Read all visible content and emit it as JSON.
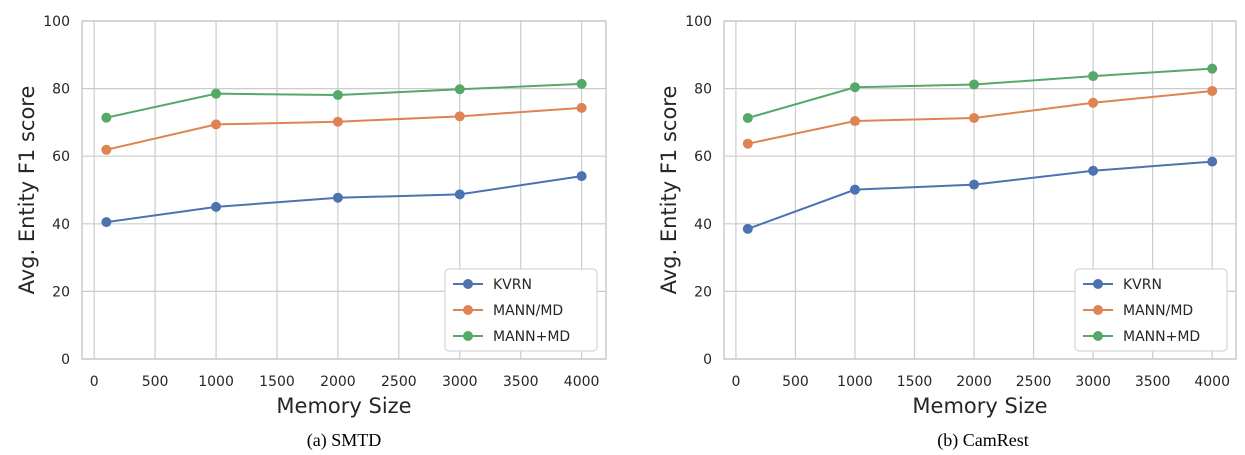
{
  "chart_data": [
    {
      "type": "line",
      "caption": "(a) SMTD",
      "xlabel": "Memory Size",
      "ylabel": "Avg. Entity F1 score",
      "xlim": [
        -100,
        4200
      ],
      "ylim": [
        0,
        100
      ],
      "x_ticks": [
        0,
        500,
        1000,
        1500,
        2000,
        2500,
        3000,
        3500,
        4000
      ],
      "y_ticks": [
        0,
        20,
        40,
        60,
        80,
        100
      ],
      "grid": true,
      "legend_position": "bottom-right",
      "x": [
        100,
        1000,
        2000,
        3000,
        4000
      ],
      "series": [
        {
          "name": "KVRN",
          "color": "#4c72b0",
          "values": [
            40.5,
            45.0,
            47.7,
            48.7,
            54.1
          ]
        },
        {
          "name": "MANN/MD",
          "color": "#dd8452",
          "values": [
            61.9,
            69.4,
            70.2,
            71.8,
            74.3
          ]
        },
        {
          "name": "MANN+MD",
          "color": "#55a868",
          "values": [
            71.4,
            78.5,
            78.1,
            79.8,
            81.4
          ]
        }
      ]
    },
    {
      "type": "line",
      "caption": "(b) CamRest",
      "xlabel": "Memory Size",
      "ylabel": "Avg. Entity F1 score",
      "xlim": [
        -100,
        4200
      ],
      "ylim": [
        0,
        100
      ],
      "x_ticks": [
        0,
        500,
        1000,
        1500,
        2000,
        2500,
        3000,
        3500,
        4000
      ],
      "y_ticks": [
        0,
        20,
        40,
        60,
        80,
        100
      ],
      "grid": true,
      "legend_position": "bottom-right",
      "x": [
        100,
        1000,
        2000,
        3000,
        4000
      ],
      "series": [
        {
          "name": "KVRN",
          "color": "#4c72b0",
          "values": [
            38.5,
            50.1,
            51.6,
            55.7,
            58.4
          ]
        },
        {
          "name": "MANN/MD",
          "color": "#dd8452",
          "values": [
            63.7,
            70.4,
            71.3,
            75.8,
            79.3
          ]
        },
        {
          "name": "MANN+MD",
          "color": "#55a868",
          "values": [
            71.3,
            80.4,
            81.2,
            83.7,
            85.9
          ]
        }
      ]
    }
  ]
}
